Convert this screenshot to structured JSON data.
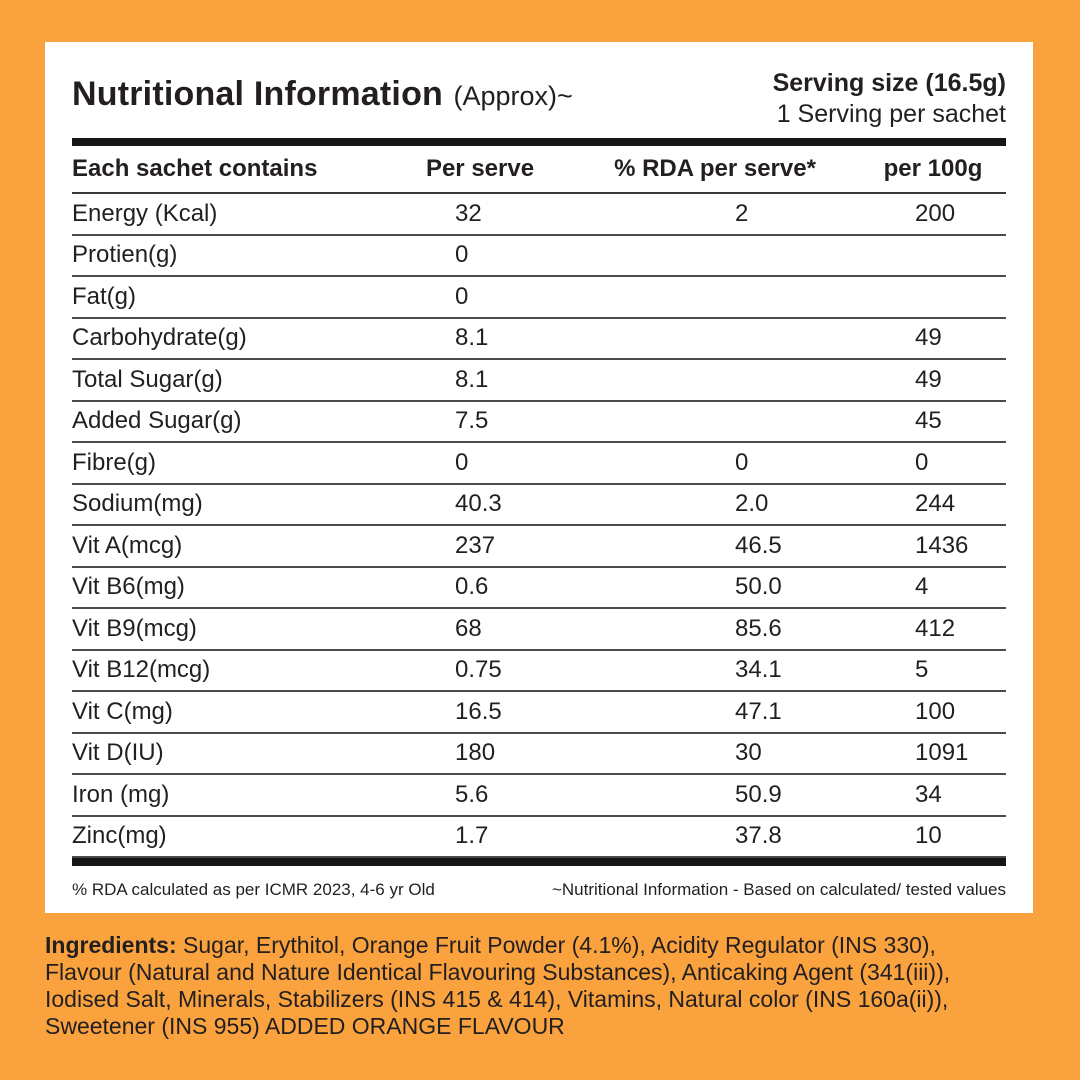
{
  "page": {
    "background_color": "#F9A23E",
    "card_color": "#FFFFFF",
    "text_color": "#231F20"
  },
  "header": {
    "title": "Nutritional Information",
    "title_suffix": "(Approx)~",
    "serving_size": "Serving size (16.5g)",
    "serving_count": "1 Serving per sachet"
  },
  "table": {
    "columns": [
      "Each sachet contains",
      "Per serve",
      "% RDA per serve*",
      "per 100g"
    ],
    "rows": [
      {
        "label": "Energy (Kcal)",
        "per_serve": "32",
        "rda": "2",
        "per_100g": "200"
      },
      {
        "label": "Protien(g)",
        "per_serve": "0",
        "rda": "",
        "per_100g": ""
      },
      {
        "label": "Fat(g)",
        "per_serve": "0",
        "rda": "",
        "per_100g": ""
      },
      {
        "label": "Carbohydrate(g)",
        "per_serve": "8.1",
        "rda": "",
        "per_100g": "49"
      },
      {
        "label": "Total Sugar(g)",
        "per_serve": "8.1",
        "rda": "",
        "per_100g": "49"
      },
      {
        "label": "Added Sugar(g)",
        "per_serve": "7.5",
        "rda": "",
        "per_100g": "45"
      },
      {
        "label": "Fibre(g)",
        "per_serve": "0",
        "rda": "0",
        "per_100g": "0"
      },
      {
        "label": "Sodium(mg)",
        "per_serve": "40.3",
        "rda": "2.0",
        "per_100g": "244"
      },
      {
        "label": "Vit A(mcg)",
        "per_serve": "237",
        "rda": "46.5",
        "per_100g": "1436"
      },
      {
        "label": "Vit B6(mg)",
        "per_serve": "0.6",
        "rda": "50.0",
        "per_100g": "4"
      },
      {
        "label": "Vit B9(mcg)",
        "per_serve": "68",
        "rda": "85.6",
        "per_100g": "412"
      },
      {
        "label": "Vit B12(mcg)",
        "per_serve": "0.75",
        "rda": "34.1",
        "per_100g": "5"
      },
      {
        "label": "Vit C(mg)",
        "per_serve": "16.5",
        "rda": "47.1",
        "per_100g": "100"
      },
      {
        "label": "Vit D(IU)",
        "per_serve": "180",
        "rda": "30",
        "per_100g": "1091"
      },
      {
        "label": "Iron (mg)",
        "per_serve": "5.6",
        "rda": "50.9",
        "per_100g": "34"
      },
      {
        "label": "Zinc(mg)",
        "per_serve": "1.7",
        "rda": "37.8",
        "per_100g": "10"
      }
    ]
  },
  "footnotes": {
    "left": "% RDA calculated as per ICMR 2023, 4-6 yr Old",
    "right": "~Nutritional Information - Based on calculated/ tested values"
  },
  "ingredients": {
    "label": "Ingredients:",
    "text": " Sugar, Erythitol, Orange Fruit Powder (4.1%), Acidity Regulator (INS 330), Flavour (Natural and Nature Identical Flavouring Substances), Anticaking Agent (341(iii)), Iodised Salt, Minerals, Stabilizers (INS 415 & 414), Vitamins, Natural color (INS 160a(ii)), Sweetener (INS 955) ADDED ORANGE FLAVOUR"
  }
}
